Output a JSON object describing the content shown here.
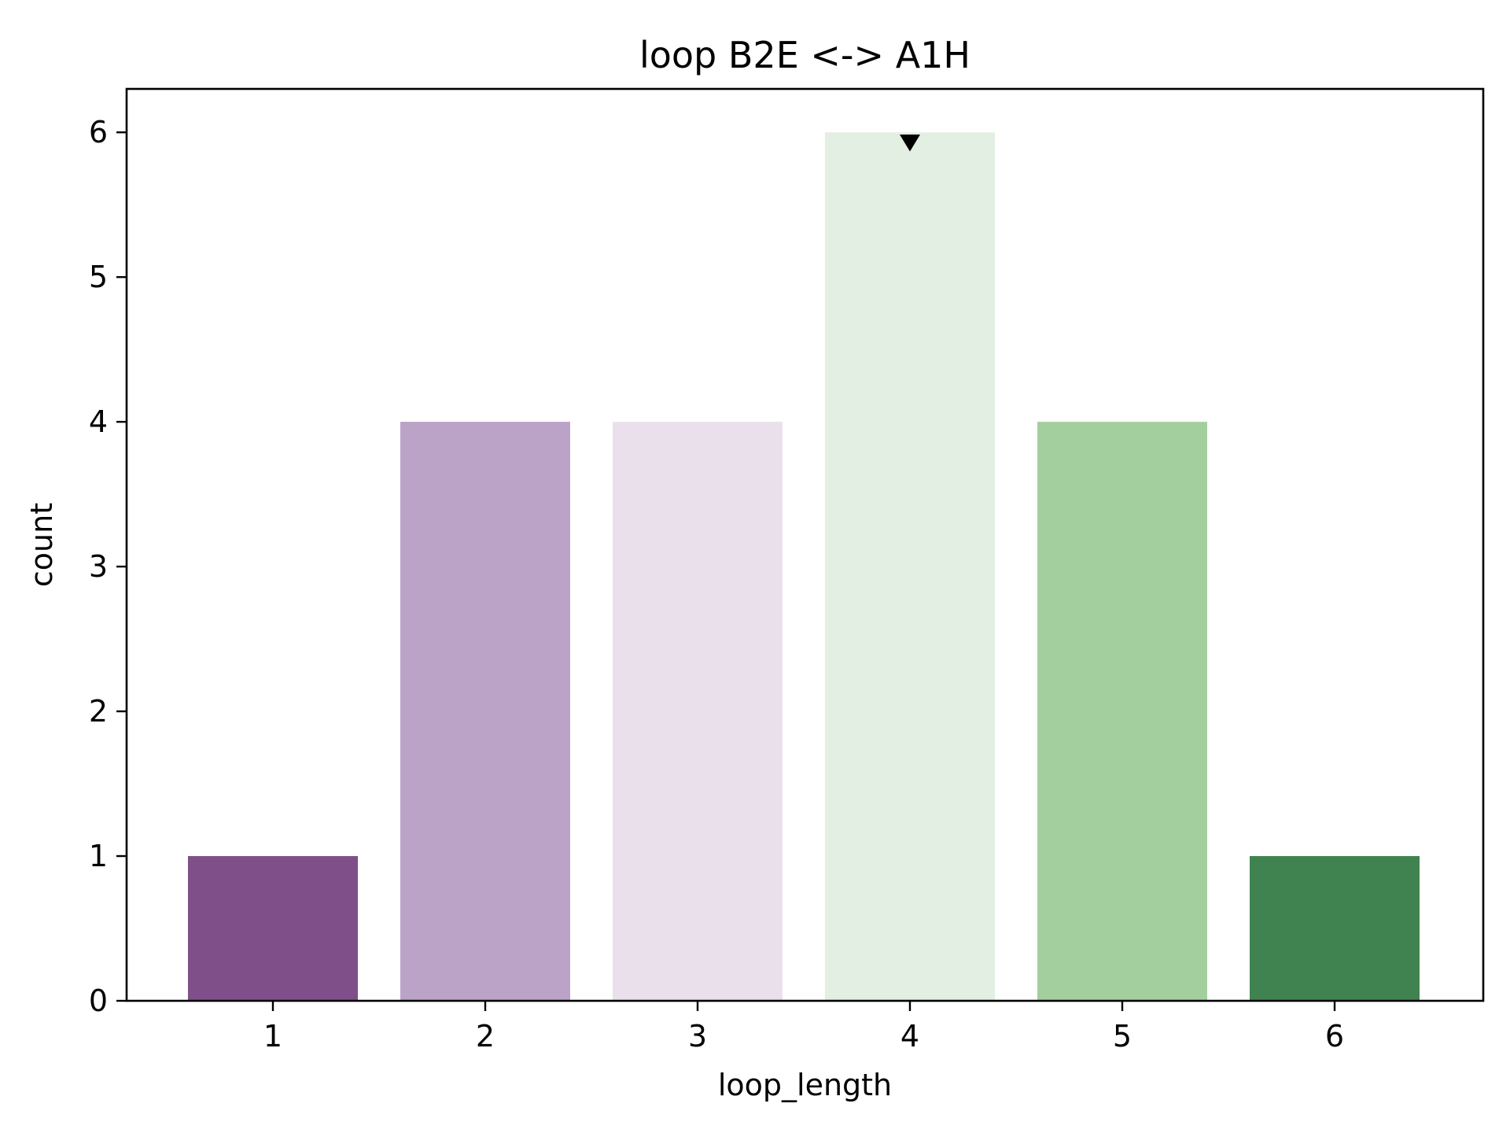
{
  "chart_data": {
    "type": "bar",
    "title": "loop B2E <-> A1H",
    "xlabel": "loop_length",
    "ylabel": "count",
    "categories": [
      "1",
      "2",
      "3",
      "4",
      "5",
      "6"
    ],
    "values": [
      1,
      4,
      4,
      6,
      4,
      1
    ],
    "colors": [
      "#7f4f89",
      "#baa3c7",
      "#eae0ec",
      "#e2efe2",
      "#a3cf9e",
      "#418350"
    ],
    "ylim": [
      0,
      6.3
    ],
    "yticks": [
      "0",
      "1",
      "2",
      "3",
      "4",
      "5",
      "6"
    ],
    "grid": false,
    "marker": {
      "category": "4",
      "value": 6,
      "shape": "triangle-down",
      "color": "#000000"
    }
  }
}
